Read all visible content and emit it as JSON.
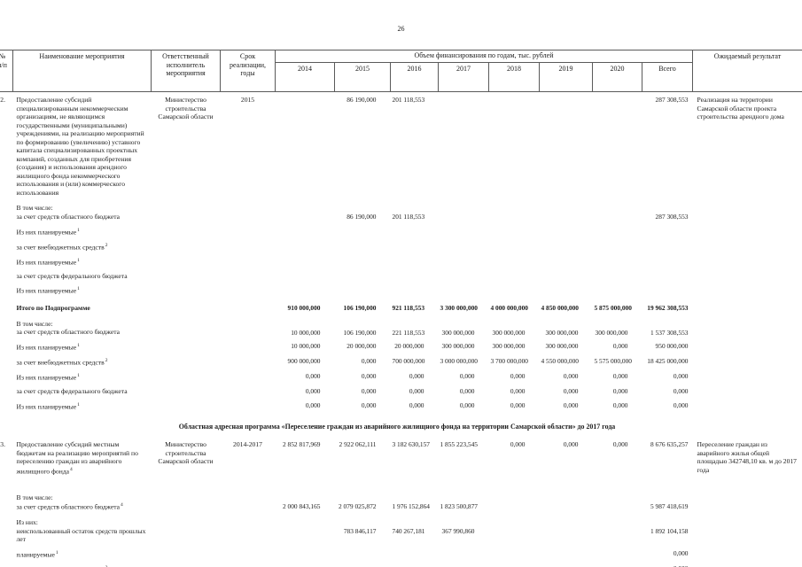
{
  "page": {
    "number": "26"
  },
  "table": {
    "header": {
      "num_l1": "№",
      "num_l2": "п/п",
      "name": "Наименование мероприятия",
      "executor": "Ответственный исполнитель мероприятия",
      "term": "Срок реализации, годы",
      "financing": "Объем финансирования по годам, тыс. рублей",
      "years": [
        "2014",
        "2015",
        "2016",
        "2017",
        "2018",
        "2019",
        "2020"
      ],
      "total": "Всего",
      "result": "Ожидаемый результат"
    },
    "rows": [
      {
        "type": "item",
        "num": "52.",
        "name": {
          "text": "Предоставление субсидий специализированным некоммерческим организациям, не являющимся государственными (муниципальными) учреждениями, на реализацию мероприятий по формированию (увеличению) уставного капитала специализированных проектных компаний, созданных для приобретения (создания) и использования арендного жилищного фонда некоммерческого использования и (или) коммерческого использования",
          "sup": ""
        },
        "exec": "Министерство строительства Самарской области",
        "term": "2015",
        "vals": [
          "",
          "86 190,000",
          "201 118,553",
          "",
          "",
          "",
          "",
          "287 308,553"
        ],
        "result": "Реализация на территории Самарской области проекта строительства арендного дома"
      },
      {
        "type": "sub2",
        "pre": "В том числе:",
        "label": {
          "text": "за счет средств областного бюджета",
          "sup": ""
        },
        "vals": [
          "",
          "86 190,000",
          "201 118,553",
          "",
          "",
          "",
          "",
          "287 308,553"
        ]
      },
      {
        "type": "sub",
        "label": {
          "text": "Из них планируемые",
          "sup": "1"
        },
        "vals": [
          "",
          "",
          "",
          "",
          "",
          "",
          "",
          ""
        ]
      },
      {
        "type": "sub",
        "label": {
          "text": "за счет внебюджетных средств",
          "sup": "2"
        },
        "vals": [
          "",
          "",
          "",
          "",
          "",
          "",
          "",
          ""
        ]
      },
      {
        "type": "sub",
        "label": {
          "text": "Из них планируемые",
          "sup": "1"
        },
        "vals": [
          "",
          "",
          "",
          "",
          "",
          "",
          "",
          ""
        ]
      },
      {
        "type": "sub",
        "label": {
          "text": "за счет средств федерального бюджета",
          "sup": ""
        },
        "vals": [
          "",
          "",
          "",
          "",
          "",
          "",
          "",
          ""
        ]
      },
      {
        "type": "sub",
        "label": {
          "text": "Из них планируемые",
          "sup": "1"
        },
        "vals": [
          "",
          "",
          "",
          "",
          "",
          "",
          "",
          ""
        ]
      },
      {
        "type": "total",
        "label": {
          "text": "Итого по Подпрограмме",
          "sup": ""
        },
        "vals": [
          "910 000,000",
          "106 190,000",
          "921 118,553",
          "3 300 000,000",
          "4 000 000,000",
          "4 850 000,000",
          "5 875 000,000",
          "19 962 308,553"
        ]
      },
      {
        "type": "sub2",
        "pre": "В том числе:",
        "label": {
          "text": "за счет средств областного бюджета",
          "sup": ""
        },
        "vals": [
          "10 000,000",
          "106 190,000",
          "221 118,553",
          "300 000,000",
          "300 000,000",
          "300 000,000",
          "300 000,000",
          "1 537 308,553"
        ]
      },
      {
        "type": "sub",
        "label": {
          "text": "Из них планируемые",
          "sup": "1"
        },
        "vals": [
          "10 000,000",
          "20 000,000",
          "20 000,000",
          "300 000,000",
          "300 000,000",
          "300 000,000",
          "0,000",
          "950 000,000"
        ]
      },
      {
        "type": "sub",
        "label": {
          "text": "за счет внебюджетных средств",
          "sup": "2"
        },
        "vals": [
          "900 000,000",
          "0,000",
          "700 000,000",
          "3 000 000,000",
          "3 700 000,000",
          "4 550 000,000",
          "5 575 000,000",
          "18 425 000,000"
        ]
      },
      {
        "type": "sub",
        "label": {
          "text": "Из них планируемые",
          "sup": "1"
        },
        "vals": [
          "0,000",
          "0,000",
          "0,000",
          "0,000",
          "0,000",
          "0,000",
          "0,000",
          "0,000"
        ]
      },
      {
        "type": "sub",
        "label": {
          "text": "за счет средств федерального бюджета",
          "sup": ""
        },
        "vals": [
          "0,000",
          "0,000",
          "0,000",
          "0,000",
          "0,000",
          "0,000",
          "0,000",
          "0,000"
        ]
      },
      {
        "type": "sub",
        "label": {
          "text": "Из них планируемые",
          "sup": "1"
        },
        "vals": [
          "0,000",
          "0,000",
          "0,000",
          "0,000",
          "0,000",
          "0,000",
          "0,000",
          "0,000"
        ]
      },
      {
        "type": "section",
        "label": "Областная адресная программа «Переселение граждан из аварийного жилищного фонда на территории Самарской области» до 2017 года"
      },
      {
        "type": "item",
        "gap": true,
        "num": "53.",
        "name": {
          "text": "Предоставление субсидий местным бюджетам на реализацию мероприятий по переселению граждан из аварийного жилищного фонда",
          "sup": "4"
        },
        "exec": "Министерство строительства Самарской области",
        "term": "2014-2017",
        "vals": [
          "2 852 817,969",
          "2 922 062,111",
          "3 182 630,157",
          "1 855 223,545",
          "0,000",
          "0,000",
          "0,000",
          "8 676 635,257"
        ],
        "result": "Переселение граждан из аварийного жилья общей площадью 342748,10 кв. м до 2017 года"
      },
      {
        "type": "sub2",
        "pre": "В том числе:",
        "label": {
          "text": "за счет средств областного бюджета",
          "sup": "4"
        },
        "vals": [
          "2 000 843,165",
          "2 079 025,872",
          "1 976 152,864",
          "1 823 500,877",
          "",
          "",
          "",
          "5 987 418,619"
        ]
      },
      {
        "type": "sub2",
        "pre": "Из них:",
        "label": {
          "text": "неиспользованный остаток средств прошлых лет",
          "sup": ""
        },
        "vals": [
          "",
          "783 846,117",
          "740 267,181",
          "367 990,860",
          "",
          "",
          "",
          "1 892 104,158"
        ]
      },
      {
        "type": "sub",
        "label": {
          "text": "планируемые",
          "sup": "1"
        },
        "vals": [
          "",
          "",
          "",
          "",
          "",
          "",
          "",
          "0,000"
        ]
      },
      {
        "type": "sub",
        "label": {
          "text": "за счет внебюджетных средств",
          "sup": "2"
        },
        "vals": [
          "",
          "",
          "",
          "",
          "",
          "",
          "",
          "0,000"
        ]
      }
    ]
  }
}
